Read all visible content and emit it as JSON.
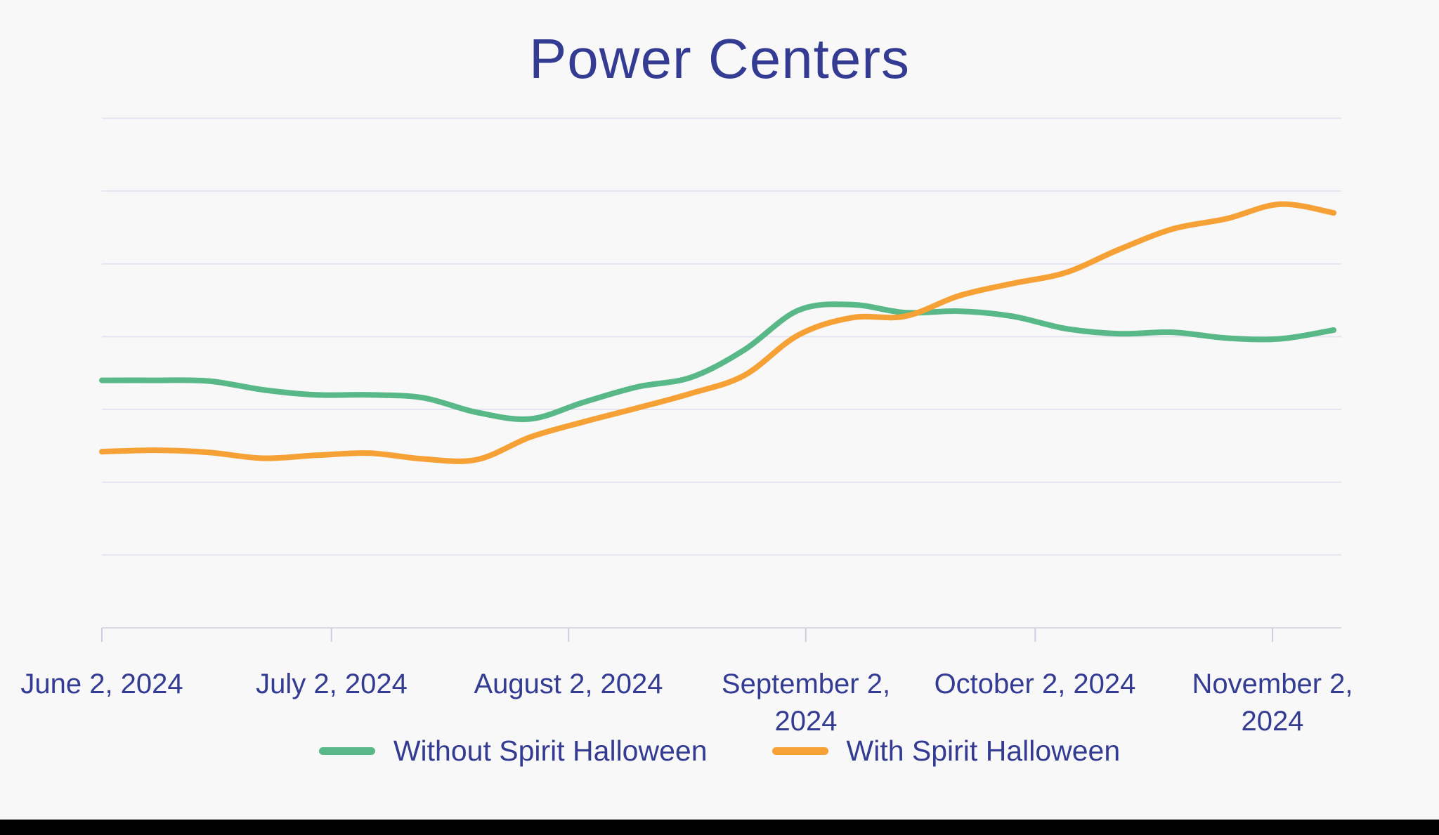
{
  "page": {
    "background": "#f9f8f8",
    "bottom_bar_color": "#000000"
  },
  "style": {
    "text_color": "#333b92",
    "grid_color": "#e5e4f1",
    "axis_color": "#d9d8e8",
    "tick_color": "#cfcede"
  },
  "chart_data": {
    "type": "line",
    "title": "Power Centers",
    "x_cadence": "weekly, June 2 2024 through November 10 2024",
    "x": [
      "Jun 2",
      "Jun 9",
      "Jun 16",
      "Jun 23",
      "Jun 30",
      "Jul 7",
      "Jul 14",
      "Jul 21",
      "Jul 28",
      "Aug 4",
      "Aug 11",
      "Aug 18",
      "Aug 25",
      "Sep 1",
      "Sep 8",
      "Sep 15",
      "Sep 22",
      "Sep 29",
      "Oct 6",
      "Oct 13",
      "Oct 20",
      "Oct 27",
      "Nov 3",
      "Nov 10"
    ],
    "x_day_offsets": [
      0,
      7,
      14,
      21,
      28,
      35,
      42,
      49,
      56,
      63,
      70,
      77,
      84,
      91,
      98,
      105,
      112,
      119,
      126,
      133,
      140,
      147,
      154,
      161
    ],
    "series": [
      {
        "name": "Without Spirit Halloween",
        "color": "#58b888",
        "values": [
          3.4,
          3.4,
          3.39,
          3.27,
          3.2,
          3.2,
          3.16,
          2.96,
          2.87,
          3.1,
          3.31,
          3.44,
          3.82,
          4.36,
          4.44,
          4.33,
          4.35,
          4.28,
          4.11,
          4.04,
          4.06,
          3.98,
          3.97,
          4.09
        ]
      },
      {
        "name": "With Spirit Halloween",
        "color": "#f6a136",
        "values": [
          2.42,
          2.44,
          2.41,
          2.33,
          2.37,
          2.4,
          2.32,
          2.31,
          2.62,
          2.83,
          3.02,
          3.22,
          3.47,
          4.02,
          4.26,
          4.28,
          4.56,
          4.73,
          4.88,
          5.2,
          5.48,
          5.62,
          5.82,
          5.7
        ]
      }
    ],
    "y_axis": {
      "labels_visible": false,
      "unit": "relative visits (unlabeled axis; values in gridline units above baseline)",
      "ylim": [
        0,
        7.4
      ],
      "gridline_values": [
        1,
        2,
        3,
        4,
        5,
        6,
        7
      ]
    },
    "x_ticks": {
      "days": [
        0,
        30,
        61,
        92,
        122,
        153
      ],
      "labels": [
        "June 2, 2024",
        "July 2, 2024",
        "August 2, 2024",
        "September 2,\n2024",
        "October 2, 2024",
        "November 2,\n2024"
      ]
    },
    "legend_position": "bottom",
    "grid": "horizontal only"
  }
}
